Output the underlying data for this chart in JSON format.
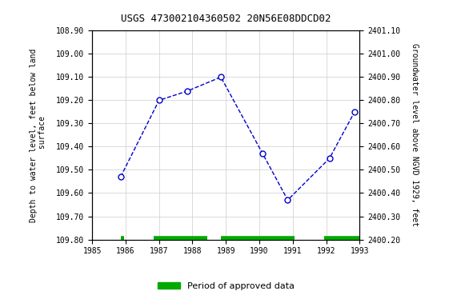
{
  "title": "USGS 473002104360502 20N56E08DDCD02",
  "x_data": [
    1985.85,
    1987.0,
    1987.85,
    1988.85,
    1990.1,
    1990.85,
    1992.1,
    1992.85
  ],
  "y_data": [
    109.53,
    109.2,
    109.16,
    109.1,
    109.43,
    109.63,
    109.45,
    109.25
  ],
  "xlim": [
    1985,
    1993
  ],
  "ylim_left": [
    109.8,
    108.9
  ],
  "ylim_right": [
    2400.2,
    2401.1
  ],
  "yticks_left": [
    108.9,
    109.0,
    109.1,
    109.2,
    109.3,
    109.4,
    109.5,
    109.6,
    109.7,
    109.8
  ],
  "yticks_right": [
    2400.2,
    2400.3,
    2400.4,
    2400.5,
    2400.6,
    2400.7,
    2400.8,
    2400.9,
    2401.0,
    2401.1
  ],
  "xticks": [
    1985,
    1986,
    1987,
    1988,
    1989,
    1990,
    1991,
    1992,
    1993
  ],
  "ylabel_left": "Depth to water level, feet below land\n surface",
  "ylabel_right": "Groundwater level above NGVD 1929, feet",
  "line_color": "#0000CC",
  "marker_color": "#0000CC",
  "green_color": "#00AA00",
  "green_bars": [
    [
      1985.85,
      1985.95
    ],
    [
      1986.85,
      1988.45
    ],
    [
      1988.85,
      1991.05
    ],
    [
      1991.95,
      1993.0
    ]
  ],
  "green_y": 109.795,
  "legend_label": "Period of approved data",
  "background_color": "#ffffff",
  "grid_color": "#cccccc"
}
